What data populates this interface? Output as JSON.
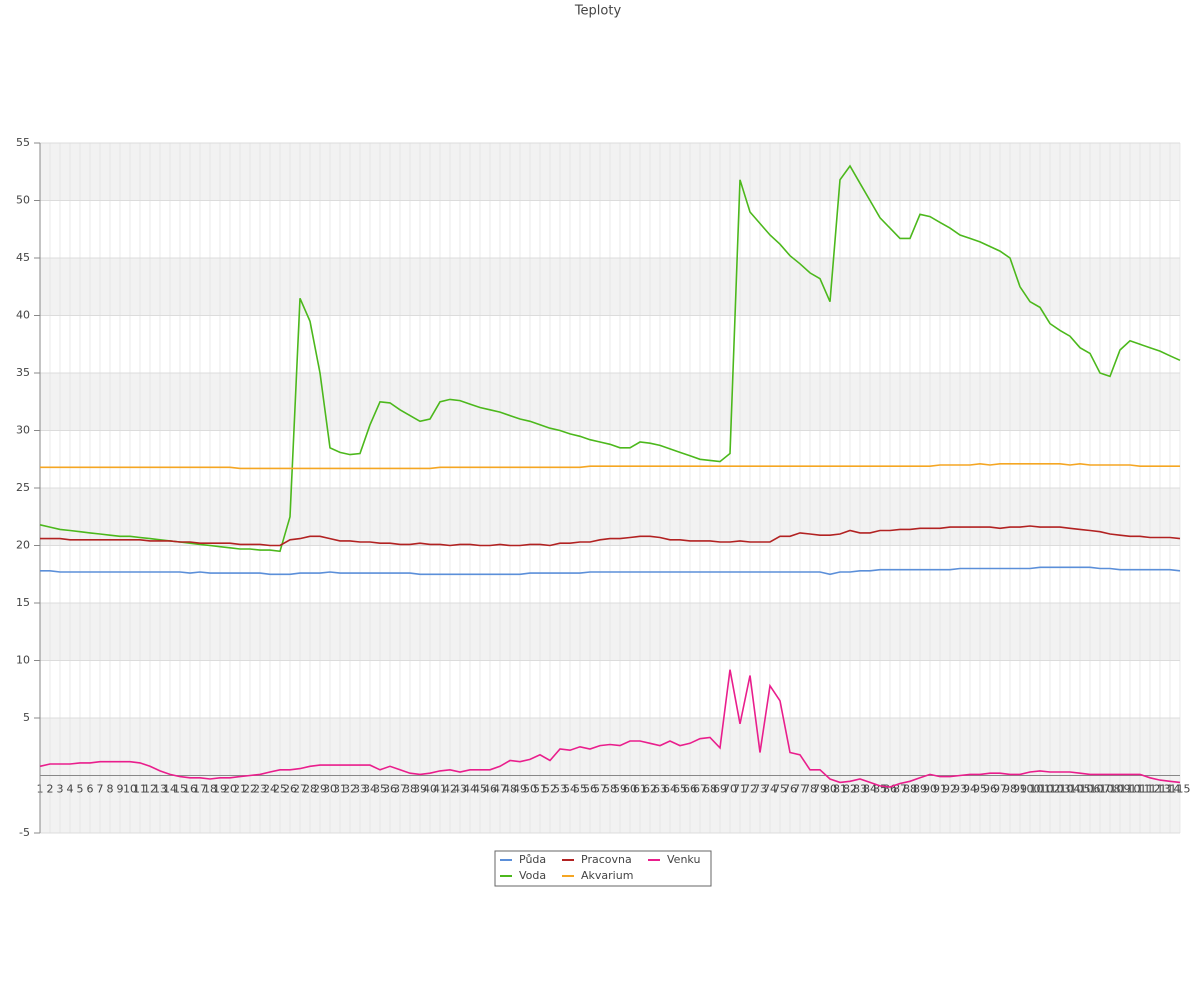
{
  "chart_data": {
    "type": "line",
    "title": "Teploty",
    "categories": [
      "1",
      "2",
      "3",
      "4",
      "5",
      "6",
      "7",
      "8",
      "9",
      "10",
      "11",
      "12",
      "13",
      "14",
      "15",
      "16",
      "17",
      "18",
      "19",
      "20",
      "21",
      "22",
      "23",
      "24",
      "25",
      "26",
      "27",
      "28",
      "29",
      "30",
      "31",
      "32",
      "33",
      "34",
      "35",
      "36",
      "37",
      "38",
      "39",
      "40",
      "41",
      "42",
      "43",
      "44",
      "45",
      "46",
      "47",
      "48",
      "49",
      "50",
      "51",
      "52",
      "53",
      "54",
      "55",
      "56",
      "57",
      "58",
      "59",
      "60",
      "61",
      "62",
      "63",
      "64",
      "65",
      "66",
      "67",
      "68",
      "69",
      "70",
      "71",
      "72",
      "73",
      "74",
      "75",
      "76",
      "77",
      "78",
      "79",
      "80",
      "81",
      "82",
      "83",
      "84",
      "85",
      "86",
      "87",
      "88",
      "89",
      "90",
      "91",
      "92",
      "93",
      "94",
      "95",
      "96",
      "97",
      "98",
      "99",
      "100",
      "101",
      "102",
      "103",
      "104",
      "105",
      "106",
      "107",
      "108",
      "109",
      "110",
      "111",
      "112",
      "113",
      "114",
      "115"
    ],
    "series": [
      {
        "name": "Půda",
        "color": "#5b8fd9",
        "values": [
          17.8,
          17.8,
          17.7,
          17.7,
          17.7,
          17.7,
          17.7,
          17.7,
          17.7,
          17.7,
          17.7,
          17.7,
          17.7,
          17.7,
          17.7,
          17.6,
          17.7,
          17.6,
          17.6,
          17.6,
          17.6,
          17.6,
          17.6,
          17.5,
          17.5,
          17.5,
          17.6,
          17.6,
          17.6,
          17.7,
          17.6,
          17.6,
          17.6,
          17.6,
          17.6,
          17.6,
          17.6,
          17.6,
          17.5,
          17.5,
          17.5,
          17.5,
          17.5,
          17.5,
          17.5,
          17.5,
          17.5,
          17.5,
          17.5,
          17.6,
          17.6,
          17.6,
          17.6,
          17.6,
          17.6,
          17.7,
          17.7,
          17.7,
          17.7,
          17.7,
          17.7,
          17.7,
          17.7,
          17.7,
          17.7,
          17.7,
          17.7,
          17.7,
          17.7,
          17.7,
          17.7,
          17.7,
          17.7,
          17.7,
          17.7,
          17.7,
          17.7,
          17.7,
          17.7,
          17.5,
          17.7,
          17.7,
          17.8,
          17.8,
          17.9,
          17.9,
          17.9,
          17.9,
          17.9,
          17.9,
          17.9,
          17.9,
          18.0,
          18.0,
          18.0,
          18.0,
          18.0,
          18.0,
          18.0,
          18.0,
          18.1,
          18.1,
          18.1,
          18.1,
          18.1,
          18.1,
          18.0,
          18.0,
          17.9,
          17.9,
          17.9,
          17.9,
          17.9,
          17.9,
          17.8
        ]
      },
      {
        "name": "Voda",
        "color": "#4cb81c",
        "values": [
          21.8,
          21.6,
          21.4,
          21.3,
          21.2,
          21.1,
          21.0,
          20.9,
          20.8,
          20.8,
          20.7,
          20.6,
          20.5,
          20.4,
          20.3,
          20.2,
          20.1,
          20.0,
          19.9,
          19.8,
          19.7,
          19.7,
          19.6,
          19.6,
          19.5,
          22.5,
          41.5,
          39.5,
          35.0,
          28.5,
          28.1,
          27.9,
          28.0,
          30.5,
          32.5,
          32.4,
          31.8,
          31.3,
          30.8,
          31.0,
          32.5,
          32.7,
          32.6,
          32.3,
          32.0,
          31.8,
          31.6,
          31.3,
          31.0,
          30.8,
          30.5,
          30.2,
          30.0,
          29.7,
          29.5,
          29.2,
          29.0,
          28.8,
          28.5,
          28.5,
          29.0,
          28.9,
          28.7,
          28.4,
          28.1,
          27.8,
          27.5,
          27.4,
          27.3,
          28.0,
          51.8,
          49.0,
          48.0,
          47.0,
          46.2,
          45.2,
          44.5,
          43.7,
          43.2,
          41.2,
          51.8,
          53.0,
          51.5,
          50.0,
          48.5,
          47.6,
          46.7,
          46.7,
          48.8,
          48.6,
          48.1,
          47.6,
          47.0,
          46.7,
          46.4,
          46.0,
          45.6,
          45.0,
          42.5,
          41.2,
          40.7,
          39.3,
          38.7,
          38.2,
          37.2,
          36.7,
          35.0,
          34.7,
          37.0,
          37.8,
          37.5,
          37.2,
          36.9,
          36.5,
          36.1
        ]
      },
      {
        "name": "Pracovna",
        "color": "#b22222",
        "values": [
          20.6,
          20.6,
          20.6,
          20.5,
          20.5,
          20.5,
          20.5,
          20.5,
          20.5,
          20.5,
          20.5,
          20.4,
          20.4,
          20.4,
          20.3,
          20.3,
          20.2,
          20.2,
          20.2,
          20.2,
          20.1,
          20.1,
          20.1,
          20.0,
          20.0,
          20.5,
          20.6,
          20.8,
          20.8,
          20.6,
          20.4,
          20.4,
          20.3,
          20.3,
          20.2,
          20.2,
          20.1,
          20.1,
          20.2,
          20.1,
          20.1,
          20.0,
          20.1,
          20.1,
          20.0,
          20.0,
          20.1,
          20.0,
          20.0,
          20.1,
          20.1,
          20.0,
          20.2,
          20.2,
          20.3,
          20.3,
          20.5,
          20.6,
          20.6,
          20.7,
          20.8,
          20.8,
          20.7,
          20.5,
          20.5,
          20.4,
          20.4,
          20.4,
          20.3,
          20.3,
          20.4,
          20.3,
          20.3,
          20.3,
          20.8,
          20.8,
          21.1,
          21.0,
          20.9,
          20.9,
          21.0,
          21.3,
          21.1,
          21.1,
          21.3,
          21.3,
          21.4,
          21.4,
          21.5,
          21.5,
          21.5,
          21.6,
          21.6,
          21.6,
          21.6,
          21.6,
          21.5,
          21.6,
          21.6,
          21.7,
          21.6,
          21.6,
          21.6,
          21.5,
          21.4,
          21.3,
          21.2,
          21.0,
          20.9,
          20.8,
          20.8,
          20.7,
          20.7,
          20.7,
          20.6
        ]
      },
      {
        "name": "Akvarium",
        "color": "#f5a623",
        "values": [
          26.8,
          26.8,
          26.8,
          26.8,
          26.8,
          26.8,
          26.8,
          26.8,
          26.8,
          26.8,
          26.8,
          26.8,
          26.8,
          26.8,
          26.8,
          26.8,
          26.8,
          26.8,
          26.8,
          26.8,
          26.7,
          26.7,
          26.7,
          26.7,
          26.7,
          26.7,
          26.7,
          26.7,
          26.7,
          26.7,
          26.7,
          26.7,
          26.7,
          26.7,
          26.7,
          26.7,
          26.7,
          26.7,
          26.7,
          26.7,
          26.8,
          26.8,
          26.8,
          26.8,
          26.8,
          26.8,
          26.8,
          26.8,
          26.8,
          26.8,
          26.8,
          26.8,
          26.8,
          26.8,
          26.8,
          26.9,
          26.9,
          26.9,
          26.9,
          26.9,
          26.9,
          26.9,
          26.9,
          26.9,
          26.9,
          26.9,
          26.9,
          26.9,
          26.9,
          26.9,
          26.9,
          26.9,
          26.9,
          26.9,
          26.9,
          26.9,
          26.9,
          26.9,
          26.9,
          26.9,
          26.9,
          26.9,
          26.9,
          26.9,
          26.9,
          26.9,
          26.9,
          26.9,
          26.9,
          26.9,
          27.0,
          27.0,
          27.0,
          27.0,
          27.1,
          27.0,
          27.1,
          27.1,
          27.1,
          27.1,
          27.1,
          27.1,
          27.1,
          27.0,
          27.1,
          27.0,
          27.0,
          27.0,
          27.0,
          27.0,
          26.9,
          26.9,
          26.9,
          26.9,
          26.9
        ]
      },
      {
        "name": "Venku",
        "color": "#e91e8c",
        "values": [
          0.8,
          1.0,
          1.0,
          1.0,
          1.1,
          1.1,
          1.2,
          1.2,
          1.2,
          1.2,
          1.1,
          0.8,
          0.4,
          0.1,
          -0.1,
          -0.2,
          -0.2,
          -0.3,
          -0.2,
          -0.2,
          -0.1,
          0.0,
          0.1,
          0.3,
          0.5,
          0.5,
          0.6,
          0.8,
          0.9,
          0.9,
          0.9,
          0.9,
          0.9,
          0.9,
          0.5,
          0.8,
          0.5,
          0.2,
          0.1,
          0.2,
          0.4,
          0.5,
          0.3,
          0.5,
          0.5,
          0.5,
          0.8,
          1.3,
          1.2,
          1.4,
          1.8,
          1.3,
          2.3,
          2.2,
          2.5,
          2.3,
          2.6,
          2.7,
          2.6,
          3.0,
          3.0,
          2.8,
          2.6,
          3.0,
          2.6,
          2.8,
          3.2,
          3.3,
          2.4,
          9.2,
          4.5,
          8.7,
          2.0,
          7.8,
          6.5,
          2.0,
          1.8,
          0.5,
          0.5,
          -0.3,
          -0.6,
          -0.5,
          -0.3,
          -0.6,
          -0.9,
          -1.0,
          -0.7,
          -0.5,
          -0.2,
          0.1,
          -0.1,
          -0.1,
          0.0,
          0.1,
          0.1,
          0.2,
          0.2,
          0.1,
          0.1,
          0.3,
          0.4,
          0.3,
          0.3,
          0.3,
          0.2,
          0.1,
          0.1,
          0.1,
          0.1,
          0.1,
          0.1,
          -0.2,
          -0.4,
          -0.5,
          -0.6
        ]
      }
    ],
    "ylim": [
      -5,
      55
    ],
    "yticks": [
      -5,
      5,
      10,
      15,
      20,
      25,
      30,
      35,
      40,
      45,
      50,
      55
    ],
    "grid": true,
    "legend": "bottom"
  }
}
